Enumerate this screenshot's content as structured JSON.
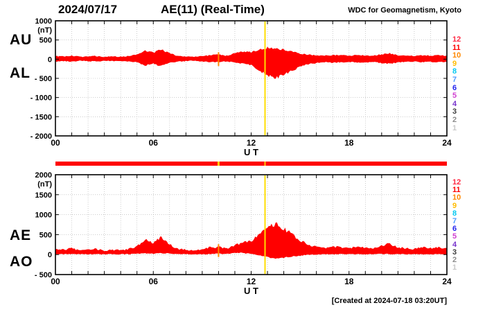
{
  "header": {
    "date": "2024/07/17",
    "title": "AE(11) (Real-Time)",
    "credit": "WDC for Geomagnetism, Kyoto"
  },
  "footer": {
    "created": "[Created at 2024-07-18 03:20UT]"
  },
  "colors": {
    "fill": "#ff0000",
    "grid": "#aaaaaa",
    "axis": "#000000",
    "background": "#ffffff"
  },
  "station_scale": [
    {
      "label": "12",
      "color": "#ff2a44"
    },
    {
      "label": "11",
      "color": "#ff0000"
    },
    {
      "label": "10",
      "color": "#ff8800"
    },
    {
      "label": "9",
      "color": "#ffbb00"
    },
    {
      "label": "8",
      "color": "#00c8f0"
    },
    {
      "label": "7",
      "color": "#4f9bff"
    },
    {
      "label": "6",
      "color": "#2222ee"
    },
    {
      "label": "5",
      "color": "#d040d0"
    },
    {
      "label": "4",
      "color": "#7733cc"
    },
    {
      "label": "3",
      "color": "#3c3c3c"
    },
    {
      "label": "2",
      "color": "#8c8c8c"
    },
    {
      "label": "1",
      "color": "#c8c8c8"
    }
  ],
  "availability_bar": {
    "color": "#ff0000",
    "gaps": [
      {
        "t": 10.0,
        "color": "#ffcc00",
        "w": 3
      },
      {
        "t": 12.85,
        "color": "#ffcc00",
        "w": 2
      }
    ]
  },
  "chart_data": [
    {
      "type": "area",
      "name": "au-al-chart",
      "left_labels": [
        "AU",
        "AL"
      ],
      "unit": "(nT)",
      "xlabel": "U T",
      "xlim": [
        0,
        24
      ],
      "xticks": [
        {
          "v": 0,
          "label": "00"
        },
        {
          "v": 6,
          "label": "06"
        },
        {
          "v": 12,
          "label": "12"
        },
        {
          "v": 18,
          "label": "18"
        },
        {
          "v": 24,
          "label": "24"
        }
      ],
      "ylim": [
        -2000,
        1000
      ],
      "yticks": [
        {
          "v": 1000,
          "label": "1000"
        },
        {
          "v": 500,
          "label": "500"
        },
        {
          "v": 0,
          "label": "0"
        },
        {
          "v": -500,
          "label": "- 500"
        },
        {
          "v": -1000,
          "label": "- 1000"
        },
        {
          "v": -1500,
          "label": "- 1500"
        },
        {
          "v": -2000,
          "label": "- 2000"
        }
      ],
      "x_step_hours": 0.5,
      "jitter_nT": 18,
      "series": [
        {
          "name": "AU",
          "values": [
            80,
            70,
            90,
            60,
            75,
            80,
            60,
            70,
            65,
            80,
            120,
            230,
            170,
            250,
            150,
            85,
            70,
            60,
            80,
            105,
            120,
            90,
            150,
            200,
            180,
            250,
            300,
            280,
            250,
            200,
            150,
            120,
            100,
            90,
            110,
            100,
            90,
            110,
            100,
            90,
            130,
            150,
            100,
            90,
            80,
            100,
            90,
            100,
            90
          ]
        },
        {
          "name": "AL",
          "values": [
            -60,
            -50,
            -70,
            -40,
            -55,
            -60,
            -40,
            -50,
            -45,
            -60,
            -80,
            -160,
            -120,
            -180,
            -100,
            -60,
            -50,
            -40,
            -60,
            -80,
            -70,
            -60,
            -80,
            -120,
            -150,
            -300,
            -420,
            -500,
            -400,
            -300,
            -200,
            -130,
            -100,
            -80,
            -90,
            -80,
            -70,
            -90,
            -80,
            -70,
            -100,
            -120,
            -80,
            -70,
            -60,
            -80,
            -70,
            -80,
            -70
          ]
        }
      ],
      "markers": [
        {
          "t": 10.0,
          "color": "#ff8800",
          "v1": 180,
          "v2": -180
        },
        {
          "t": 12.85,
          "color": "#ffdd00",
          "v1": null,
          "v2": null
        }
      ]
    },
    {
      "type": "area",
      "name": "ae-ao-chart",
      "left_labels": [
        "AE",
        "AO"
      ],
      "unit": "(nT)",
      "xlabel": "U T",
      "xlim": [
        0,
        24
      ],
      "xticks": [
        {
          "v": 0,
          "label": "00"
        },
        {
          "v": 6,
          "label": "06"
        },
        {
          "v": 12,
          "label": "12"
        },
        {
          "v": 18,
          "label": "18"
        },
        {
          "v": 24,
          "label": "24"
        }
      ],
      "ylim": [
        -500,
        2000
      ],
      "yticks": [
        {
          "v": 2000,
          "label": "2000"
        },
        {
          "v": 1500,
          "label": "1500"
        },
        {
          "v": 1000,
          "label": "1000"
        },
        {
          "v": 500,
          "label": "500"
        },
        {
          "v": 0,
          "label": "0"
        },
        {
          "v": -500,
          "label": "- 500"
        }
      ],
      "x_step_hours": 0.5,
      "jitter_nT": 22,
      "series": [
        {
          "name": "AE",
          "values": [
            140,
            120,
            160,
            100,
            130,
            140,
            100,
            120,
            110,
            140,
            200,
            390,
            290,
            430,
            250,
            145,
            120,
            100,
            140,
            185,
            190,
            150,
            230,
            320,
            330,
            550,
            720,
            780,
            650,
            500,
            350,
            250,
            200,
            170,
            200,
            180,
            160,
            200,
            180,
            160,
            230,
            270,
            180,
            160,
            140,
            180,
            160,
            180,
            160
          ]
        },
        {
          "name": "AO",
          "values": [
            10,
            10,
            10,
            10,
            10,
            10,
            10,
            10,
            10,
            10,
            20,
            35,
            25,
            35,
            25,
            12,
            10,
            10,
            10,
            12,
            25,
            15,
            35,
            40,
            15,
            -25,
            -60,
            -110,
            -75,
            -50,
            -25,
            -5,
            0,
            5,
            10,
            10,
            10,
            10,
            10,
            10,
            15,
            15,
            10,
            10,
            10,
            10,
            10,
            10,
            10
          ]
        }
      ],
      "markers": [
        {
          "t": 10.0,
          "color": "#ff8800",
          "v1": 260,
          "v2": -60
        },
        {
          "t": 12.85,
          "color": "#ffdd00",
          "v1": null,
          "v2": null
        }
      ]
    }
  ]
}
